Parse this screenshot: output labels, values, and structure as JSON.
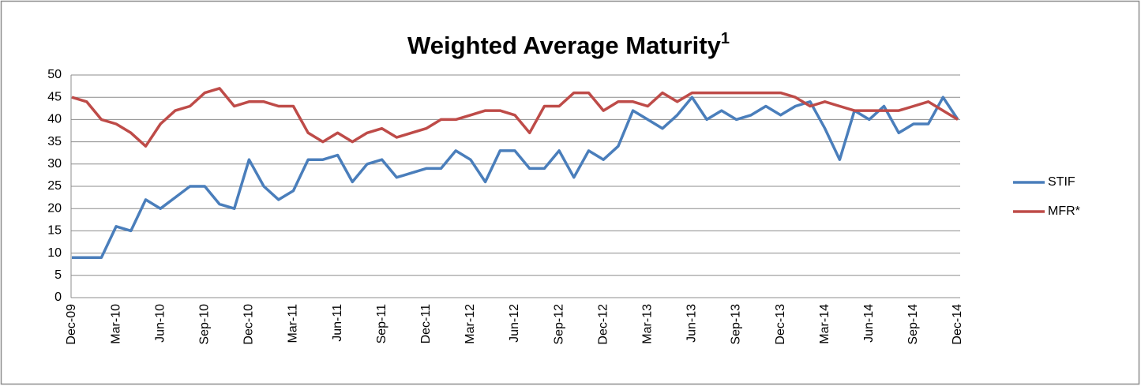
{
  "chart_data": {
    "type": "line",
    "title": "Weighted Average Maturity",
    "title_superscript": "1",
    "categories": [
      "Dec-09",
      null,
      null,
      "Mar-10",
      null,
      null,
      "Jun-10",
      null,
      null,
      "Sep-10",
      null,
      null,
      "Dec-10",
      null,
      null,
      "Mar-11",
      null,
      null,
      "Jun-11",
      null,
      null,
      "Sep-11",
      null,
      null,
      "Dec-11",
      null,
      null,
      "Mar-12",
      null,
      null,
      "Jun-12",
      null,
      null,
      "Sep-12",
      null,
      null,
      "Dec-12",
      null,
      null,
      "Mar-13",
      null,
      null,
      "Jun-13",
      null,
      null,
      "Sep-13",
      null,
      null,
      "Dec-13",
      null,
      null,
      "Mar-14",
      null,
      null,
      "Jun-14",
      null,
      null,
      "Sep-14",
      null,
      null,
      "Dec-14"
    ],
    "series": [
      {
        "name": "STIF",
        "color": "#4a7ebb",
        "values": [
          9,
          9,
          9,
          16,
          15,
          22,
          20,
          22.5,
          25,
          25,
          21,
          20,
          31,
          25,
          22,
          24,
          31,
          31,
          32,
          26,
          30,
          31,
          27,
          28,
          29,
          29,
          33,
          31,
          26,
          33,
          33,
          29,
          29,
          33,
          27,
          33,
          31,
          34,
          42,
          40,
          38,
          41,
          45,
          40,
          42,
          40,
          41,
          43,
          41,
          43,
          44,
          38,
          31,
          42,
          40,
          43,
          37,
          39,
          39,
          45,
          40
        ]
      },
      {
        "name": "MFR*",
        "color": "#be4b48",
        "values": [
          45,
          44,
          40,
          39,
          37,
          34,
          39,
          42,
          43,
          46,
          47,
          43,
          44,
          44,
          43,
          43,
          37,
          35,
          37,
          35,
          37,
          38,
          36,
          37,
          38,
          40,
          40,
          41,
          42,
          42,
          41,
          37,
          43,
          43,
          46,
          46,
          42,
          44,
          44,
          43,
          46,
          44,
          46,
          46,
          46,
          46,
          46,
          46,
          46,
          45,
          43,
          44,
          43,
          42,
          42,
          42,
          42,
          43,
          44,
          42,
          40
        ]
      }
    ],
    "ylim": [
      0,
      50
    ],
    "yticks": [
      0,
      5,
      10,
      15,
      20,
      25,
      30,
      35,
      40,
      45,
      50
    ],
    "grid": true,
    "legend": "right"
  }
}
